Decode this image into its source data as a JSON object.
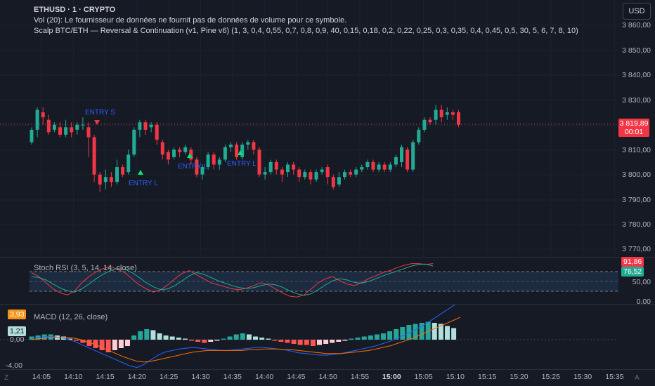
{
  "header": {
    "symbol_line": "ETHUSD · 1 · CRYPTO",
    "volume_line": "Vol (20): Le fournisseur de données ne fournit pas de données de volume pour ce symbole.",
    "strategy_line": "Scalp BTC/ETH — Reversal & Continuation (v1, Pine v6) (1, 3, 0,4, 0,55, 0,7, 0,8, 0,9, 40, 0,15, 0,18, 0,2, 0,22, 0,25, 0,3, 0,35, 0,4, 0,45, 0,5, 30, 5, 6, 7, 8, 10)"
  },
  "currency_button": "USD",
  "price_axis": [
    "3 860,00",
    "3 850,00",
    "3 840,00",
    "3 830,00",
    "3 810,00",
    "3 800,00",
    "3 790,00",
    "3 780,00",
    "3 770,00"
  ],
  "last_price": {
    "value": "3 819,89",
    "countdown": "00:01"
  },
  "markers": {
    "entry_s": "ENTRY S",
    "entry_l1": "ENTRY L",
    "entry_l2": "ENTRY L",
    "entry_l3": "ENTRY L"
  },
  "stoch": {
    "title": "Stoch RSI (3, 5, 14, 14, close)",
    "k_value": "91,86",
    "d_value": "76,52",
    "axis": [
      "50,00",
      "0,00"
    ],
    "k_color": "#f23645",
    "d_color": "#22ab94"
  },
  "macd": {
    "title": "MACD (12, 26, close)",
    "macd_value": "3,93",
    "signal_value": "1,21",
    "axis": [
      "0,00",
      "-4,00"
    ]
  },
  "time_axis": [
    "14:05",
    "14:10",
    "14:15",
    "14:20",
    "14:25",
    "14:30",
    "14:35",
    "14:40",
    "14:45",
    "14:50",
    "14:55",
    "15:00",
    "15:05",
    "15:10",
    "15:15",
    "15:20",
    "15:25",
    "15:30",
    "15:35"
  ],
  "corner_left": "Z",
  "corner_right": "A",
  "colors": {
    "up": "#22ab94",
    "down": "#f23645",
    "bg": "#161a25"
  }
}
